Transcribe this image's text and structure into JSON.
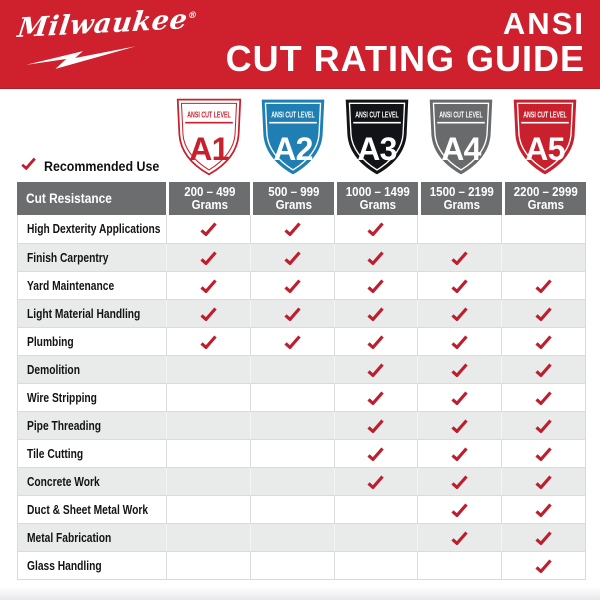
{
  "colors": {
    "brand_red": "#CE202D",
    "check_red": "#BE1E2D",
    "level_blue": "#1F7FB3",
    "level_black": "#121316",
    "level_gray": "#696A6C",
    "table_header_gray": "#6C6D6F",
    "row_alt_gray": "#E9EAEA",
    "grid_line": "#DADBDD"
  },
  "masthead": {
    "brand": "Milwaukee",
    "registered_mark": "®",
    "title_line1": "ANSI",
    "title_line2": "CUT RATING GUIDE"
  },
  "legend": {
    "label": "Recommended Use"
  },
  "shields": [
    {
      "banner": "ANSI CUT LEVEL",
      "level": "A1",
      "fill": "#FFFFFF",
      "accent": "#C8202C",
      "text_color": "#C8202C",
      "style": "outline"
    },
    {
      "banner": "ANSI CUT LEVEL",
      "level": "A2",
      "fill": "#1F7FB3",
      "accent": "#FFFFFF",
      "text_color": "#FFFFFF",
      "style": "solid"
    },
    {
      "banner": "ANSI CUT LEVEL",
      "level": "A3",
      "fill": "#121316",
      "accent": "#FFFFFF",
      "text_color": "#FFFFFF",
      "style": "solid"
    },
    {
      "banner": "ANSI CUT LEVEL",
      "level": "A4",
      "fill": "#696A6C",
      "accent": "#FFFFFF",
      "text_color": "#FFFFFF",
      "style": "solid"
    },
    {
      "banner": "ANSI CUT LEVEL",
      "level": "A5",
      "fill": "#C8202C",
      "accent": "#FFFFFF",
      "text_color": "#FFFFFF",
      "style": "solid"
    }
  ],
  "table": {
    "corner_header": "Cut Resistance",
    "columns": [
      {
        "range": "200 – 499",
        "unit": "Grams"
      },
      {
        "range": "500 – 999",
        "unit": "Grams"
      },
      {
        "range": "1000 – 1499",
        "unit": "Grams"
      },
      {
        "range": "1500 – 2199",
        "unit": "Grams"
      },
      {
        "range": "2200 – 2999",
        "unit": "Grams"
      }
    ],
    "rows": [
      {
        "label": "High Dexterity Applications",
        "checks": [
          true,
          true,
          true,
          false,
          false
        ]
      },
      {
        "label": "Finish Carpentry",
        "checks": [
          true,
          true,
          true,
          true,
          false
        ]
      },
      {
        "label": "Yard Maintenance",
        "checks": [
          true,
          true,
          true,
          true,
          true
        ]
      },
      {
        "label": "Light Material Handling",
        "checks": [
          true,
          true,
          true,
          true,
          true
        ]
      },
      {
        "label": "Plumbing",
        "checks": [
          true,
          true,
          true,
          true,
          true
        ]
      },
      {
        "label": "Demolition",
        "checks": [
          false,
          false,
          true,
          true,
          true
        ]
      },
      {
        "label": "Wire Stripping",
        "checks": [
          false,
          false,
          true,
          true,
          true
        ]
      },
      {
        "label": "Pipe Threading",
        "checks": [
          false,
          false,
          true,
          true,
          true
        ]
      },
      {
        "label": "Tile Cutting",
        "checks": [
          false,
          false,
          true,
          true,
          true
        ]
      },
      {
        "label": "Concrete Work",
        "checks": [
          false,
          false,
          true,
          true,
          true
        ]
      },
      {
        "label": "Duct & Sheet Metal Work",
        "checks": [
          false,
          false,
          false,
          true,
          true
        ]
      },
      {
        "label": "Metal Fabrication",
        "checks": [
          false,
          false,
          false,
          true,
          true
        ]
      },
      {
        "label": "Glass Handling",
        "checks": [
          false,
          false,
          false,
          false,
          true
        ]
      }
    ]
  }
}
